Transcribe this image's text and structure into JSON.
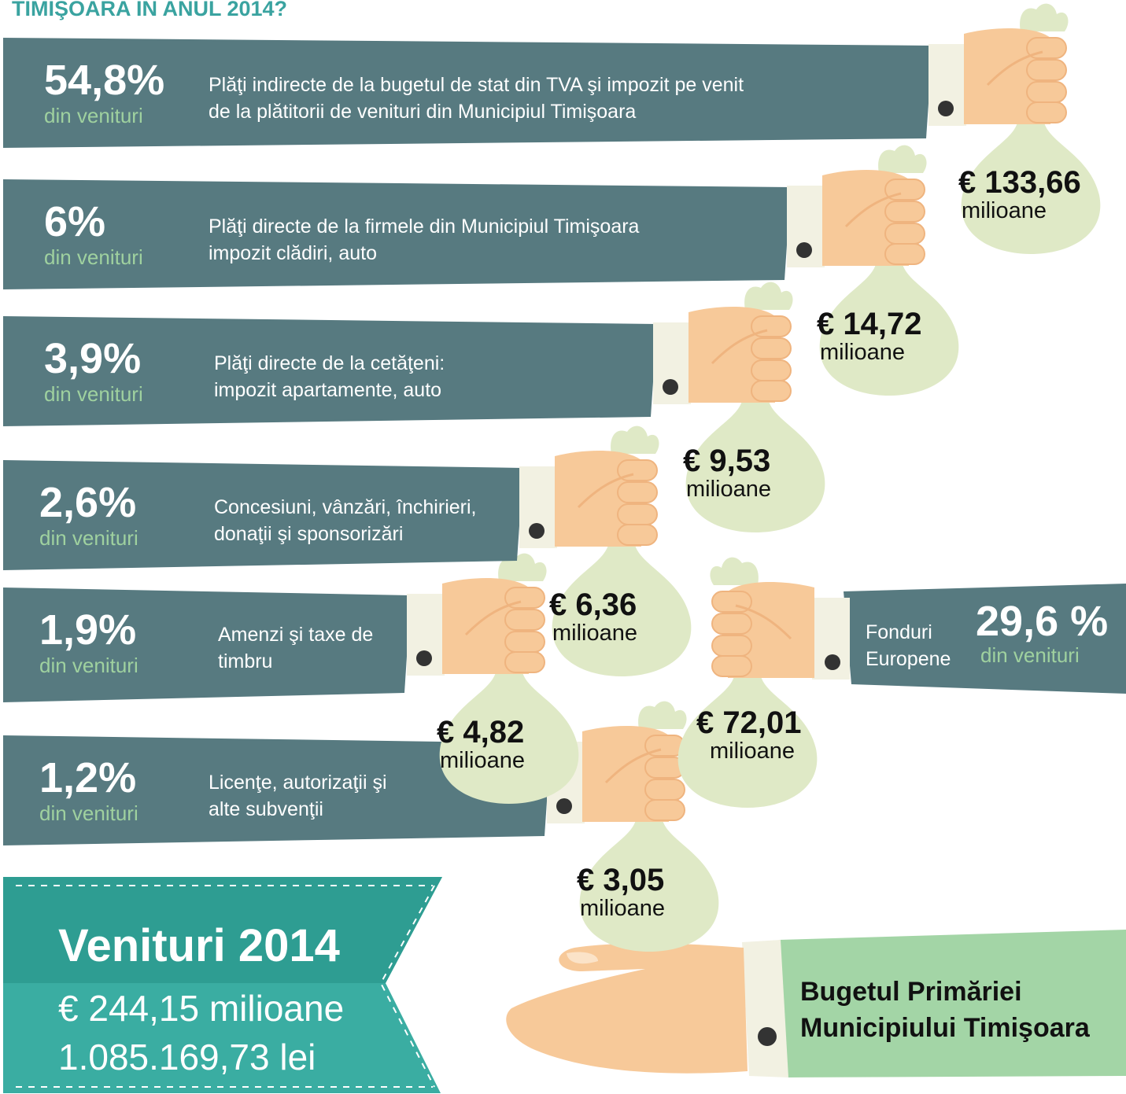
{
  "header": {
    "title": "TIMIŞOARA ÎN ANUL 2014?"
  },
  "sources": [
    {
      "percent": "54,8%",
      "sub": "din venituri",
      "description": [
        "Plăţi indirecte de la bugetul de stat din TVA şi impozit pe venit",
        "de la plătitorii de venituri din  Municipiul Timişoara"
      ],
      "amount": "€ 133,66",
      "unit": "milioane"
    },
    {
      "percent": "6%",
      "sub": "din venituri",
      "description": [
        "Plăţi directe de la firmele din  Municipiul Timişoara",
        "impozit clădiri, auto"
      ],
      "amount": "€ 14,72",
      "unit": "milioane"
    },
    {
      "percent": "3,9%",
      "sub": "din venituri",
      "description": [
        "Plăţi directe de la cetăţeni:",
        "impozit apartamente, auto"
      ],
      "amount": "€ 9,53",
      "unit": "milioane"
    },
    {
      "percent": "2,6%",
      "sub": "din venituri",
      "description": [
        "Concesiuni, vânzări, închirieri,",
        "donaţii şi sponsorizări"
      ],
      "amount": "€ 6,36",
      "unit": "milioane"
    },
    {
      "percent": "1,9%",
      "sub": "din venituri",
      "description": [
        "Amenzi şi taxe de",
        "timbru"
      ],
      "amount": "€ 4,82",
      "unit": "milioane"
    },
    {
      "percent": "1,2%",
      "sub": "din venituri",
      "description": [
        "Licenţe, autorizaţii şi",
        "alte subvenţii"
      ],
      "amount": "€ 3,05",
      "unit": "milioane"
    }
  ],
  "eu_funds": {
    "percent": "29,6 %",
    "sub": "din venituri",
    "description": [
      "Fonduri",
      "Europene"
    ],
    "amount": "€ 72,01",
    "unit": "milioane"
  },
  "total": {
    "title": "Venituri 2014",
    "eur": "€ 244,15  milioane",
    "lei": "1.085.169,73  lei"
  },
  "recipient": {
    "lines": [
      "Bugetul Primăriei",
      "Municipiului Timişoara"
    ]
  }
}
